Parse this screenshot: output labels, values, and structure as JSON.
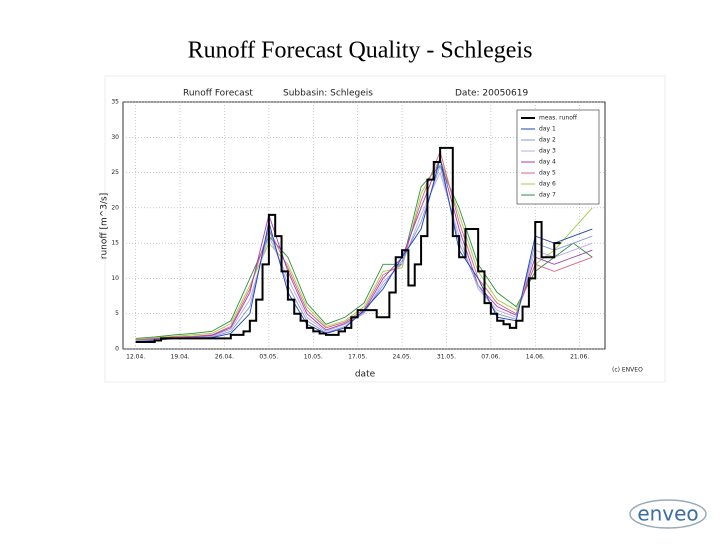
{
  "title": "Runoff Forecast Quality - Schlegeis",
  "logo": "enveo",
  "chart_data": {
    "type": "line",
    "title": "Runoff Forecast",
    "subbasin": "Subbasin:  Schlegeis",
    "date": "Date:  20050619",
    "x_label": "date",
    "y_label": "runoff [m^3/s]",
    "credit": "(c) ENVEO",
    "xlim": [
      -2,
      74
    ],
    "ylim": [
      0,
      35
    ],
    "xticks": [
      {
        "value": 0,
        "label": "12.04."
      },
      {
        "value": 7,
        "label": "19.04."
      },
      {
        "value": 14,
        "label": "26.04."
      },
      {
        "value": 21,
        "label": "03.05."
      },
      {
        "value": 28,
        "label": "10.05."
      },
      {
        "value": 35,
        "label": "17.05."
      },
      {
        "value": 42,
        "label": "24.05."
      },
      {
        "value": 49,
        "label": "31.05."
      },
      {
        "value": 56,
        "label": "07.06."
      },
      {
        "value": 63,
        "label": "14.06."
      },
      {
        "value": 70,
        "label": "21.06."
      }
    ],
    "yticks": [
      0,
      5,
      10,
      15,
      20,
      25,
      30,
      35
    ],
    "grid": true,
    "legend": "upper right",
    "series": [
      {
        "name": "meas. runoff",
        "color": "#000000",
        "step": true,
        "x": [
          0,
          1,
          2,
          3,
          4,
          5,
          6,
          7,
          8,
          9,
          10,
          11,
          12,
          13,
          14,
          15,
          16,
          17,
          18,
          19,
          20,
          21,
          22,
          23,
          24,
          25,
          26,
          27,
          28,
          29,
          30,
          31,
          32,
          33,
          34,
          35,
          36,
          37,
          38,
          39,
          40,
          41,
          42,
          43,
          44,
          45,
          46,
          47,
          48,
          49,
          50,
          51,
          52,
          53,
          54,
          55,
          56,
          57,
          58,
          59,
          60,
          61,
          62,
          63,
          64,
          65,
          66,
          67
        ],
        "values": [
          1,
          1,
          1,
          1.2,
          1.5,
          1.5,
          1.5,
          1.5,
          1.5,
          1.5,
          1.5,
          1.5,
          1.5,
          1.5,
          1.5,
          2,
          2,
          2.5,
          4,
          7,
          12,
          19,
          16,
          11,
          7,
          5,
          4,
          3,
          2.5,
          2.2,
          2,
          2,
          2.5,
          3,
          4.5,
          5.5,
          5.5,
          5.5,
          4.5,
          4.5,
          8,
          13,
          14,
          9,
          12,
          16,
          24,
          26.5,
          28.5,
          28.5,
          16,
          13,
          17,
          17,
          11,
          6.5,
          5,
          4,
          3.5,
          3,
          4,
          6,
          10,
          18,
          13,
          13,
          15,
          15
        ]
      },
      {
        "name": "day 1",
        "color": "#1f3fbf",
        "x": [
          0,
          3,
          6,
          9,
          12,
          15,
          18,
          21,
          24,
          27,
          30,
          33,
          36,
          39,
          42,
          45,
          48,
          51,
          54,
          57,
          60,
          63,
          66,
          69,
          72
        ],
        "values": [
          1,
          1.2,
          1.5,
          1.5,
          1.6,
          2.2,
          5,
          18,
          8,
          3.5,
          2.2,
          3,
          5.5,
          8.5,
          13,
          17,
          27,
          14,
          10,
          4.5,
          4,
          16,
          15,
          16,
          17
        ]
      },
      {
        "name": "day 2",
        "color": "#7f9fcf",
        "x": [
          0,
          3,
          6,
          9,
          12,
          15,
          18,
          21,
          24,
          27,
          30,
          33,
          36,
          39,
          42,
          45,
          48,
          51,
          54,
          57,
          60,
          63,
          66,
          69,
          72
        ],
        "values": [
          1.1,
          1.3,
          1.5,
          1.6,
          1.7,
          2.5,
          6,
          17,
          9,
          4,
          2.3,
          3.2,
          5.2,
          9,
          12.5,
          18,
          26,
          15,
          9,
          5,
          4.2,
          15,
          14,
          15,
          16
        ]
      },
      {
        "name": "day 3",
        "color": "#bfa8e8",
        "x": [
          0,
          3,
          6,
          9,
          12,
          15,
          18,
          21,
          24,
          27,
          30,
          33,
          36,
          39,
          42,
          45,
          48,
          51,
          54,
          57,
          60,
          63,
          66,
          69,
          72
        ],
        "values": [
          1.2,
          1.3,
          1.6,
          1.6,
          1.8,
          2.8,
          7,
          16,
          10,
          4.5,
          2.5,
          3.5,
          5,
          9.5,
          12,
          19,
          25,
          16,
          8.5,
          5.5,
          4.5,
          14,
          13,
          14,
          15
        ]
      },
      {
        "name": "day 4",
        "color": "#9f3fbf",
        "x": [
          0,
          3,
          6,
          9,
          12,
          15,
          18,
          21,
          24,
          27,
          30,
          33,
          36,
          39,
          42,
          45,
          48,
          51,
          54,
          57,
          60,
          63,
          66,
          69,
          72
        ],
        "values": [
          1.2,
          1.4,
          1.6,
          1.7,
          1.9,
          3,
          8,
          19,
          11,
          5,
          2.7,
          3.6,
          5.3,
          10,
          13,
          20,
          27,
          17,
          9,
          6,
          4.8,
          13,
          12,
          13,
          14
        ]
      },
      {
        "name": "day 5",
        "color": "#e0607f",
        "x": [
          0,
          3,
          6,
          9,
          12,
          15,
          18,
          21,
          24,
          27,
          30,
          33,
          36,
          39,
          42,
          45,
          48,
          51,
          54,
          57,
          60,
          63,
          66,
          69,
          72
        ],
        "values": [
          1.3,
          1.5,
          1.7,
          1.8,
          2,
          3.2,
          8.5,
          17,
          11.5,
          5.5,
          3,
          3.8,
          5.6,
          10.5,
          12,
          21,
          28,
          18,
          10,
          6.5,
          5,
          12,
          11,
          12,
          13
        ]
      },
      {
        "name": "day 6",
        "color": "#9fcf3f",
        "x": [
          0,
          3,
          6,
          9,
          12,
          15,
          18,
          21,
          24,
          27,
          30,
          33,
          36,
          39,
          42,
          45,
          48,
          51,
          54,
          57,
          60,
          63,
          66,
          69,
          72
        ],
        "values": [
          1.4,
          1.6,
          1.8,
          2,
          2.2,
          3.6,
          9,
          15,
          12,
          6,
          3.2,
          4,
          6,
          11,
          11.5,
          22,
          27,
          19,
          11,
          7,
          5.5,
          12,
          14,
          17,
          20
        ]
      },
      {
        "name": "day 7",
        "color": "#2f8f3f",
        "x": [
          0,
          3,
          6,
          9,
          12,
          15,
          18,
          21,
          24,
          27,
          30,
          33,
          36,
          39,
          42,
          45,
          48,
          51,
          54,
          57,
          60,
          63,
          66,
          69,
          72
        ],
        "values": [
          1.5,
          1.7,
          2,
          2.2,
          2.5,
          4,
          10,
          16,
          13,
          6.5,
          3.5,
          4.5,
          6.5,
          12,
          12,
          23,
          26,
          20,
          12,
          8,
          6,
          11,
          13,
          15,
          13
        ]
      }
    ]
  }
}
